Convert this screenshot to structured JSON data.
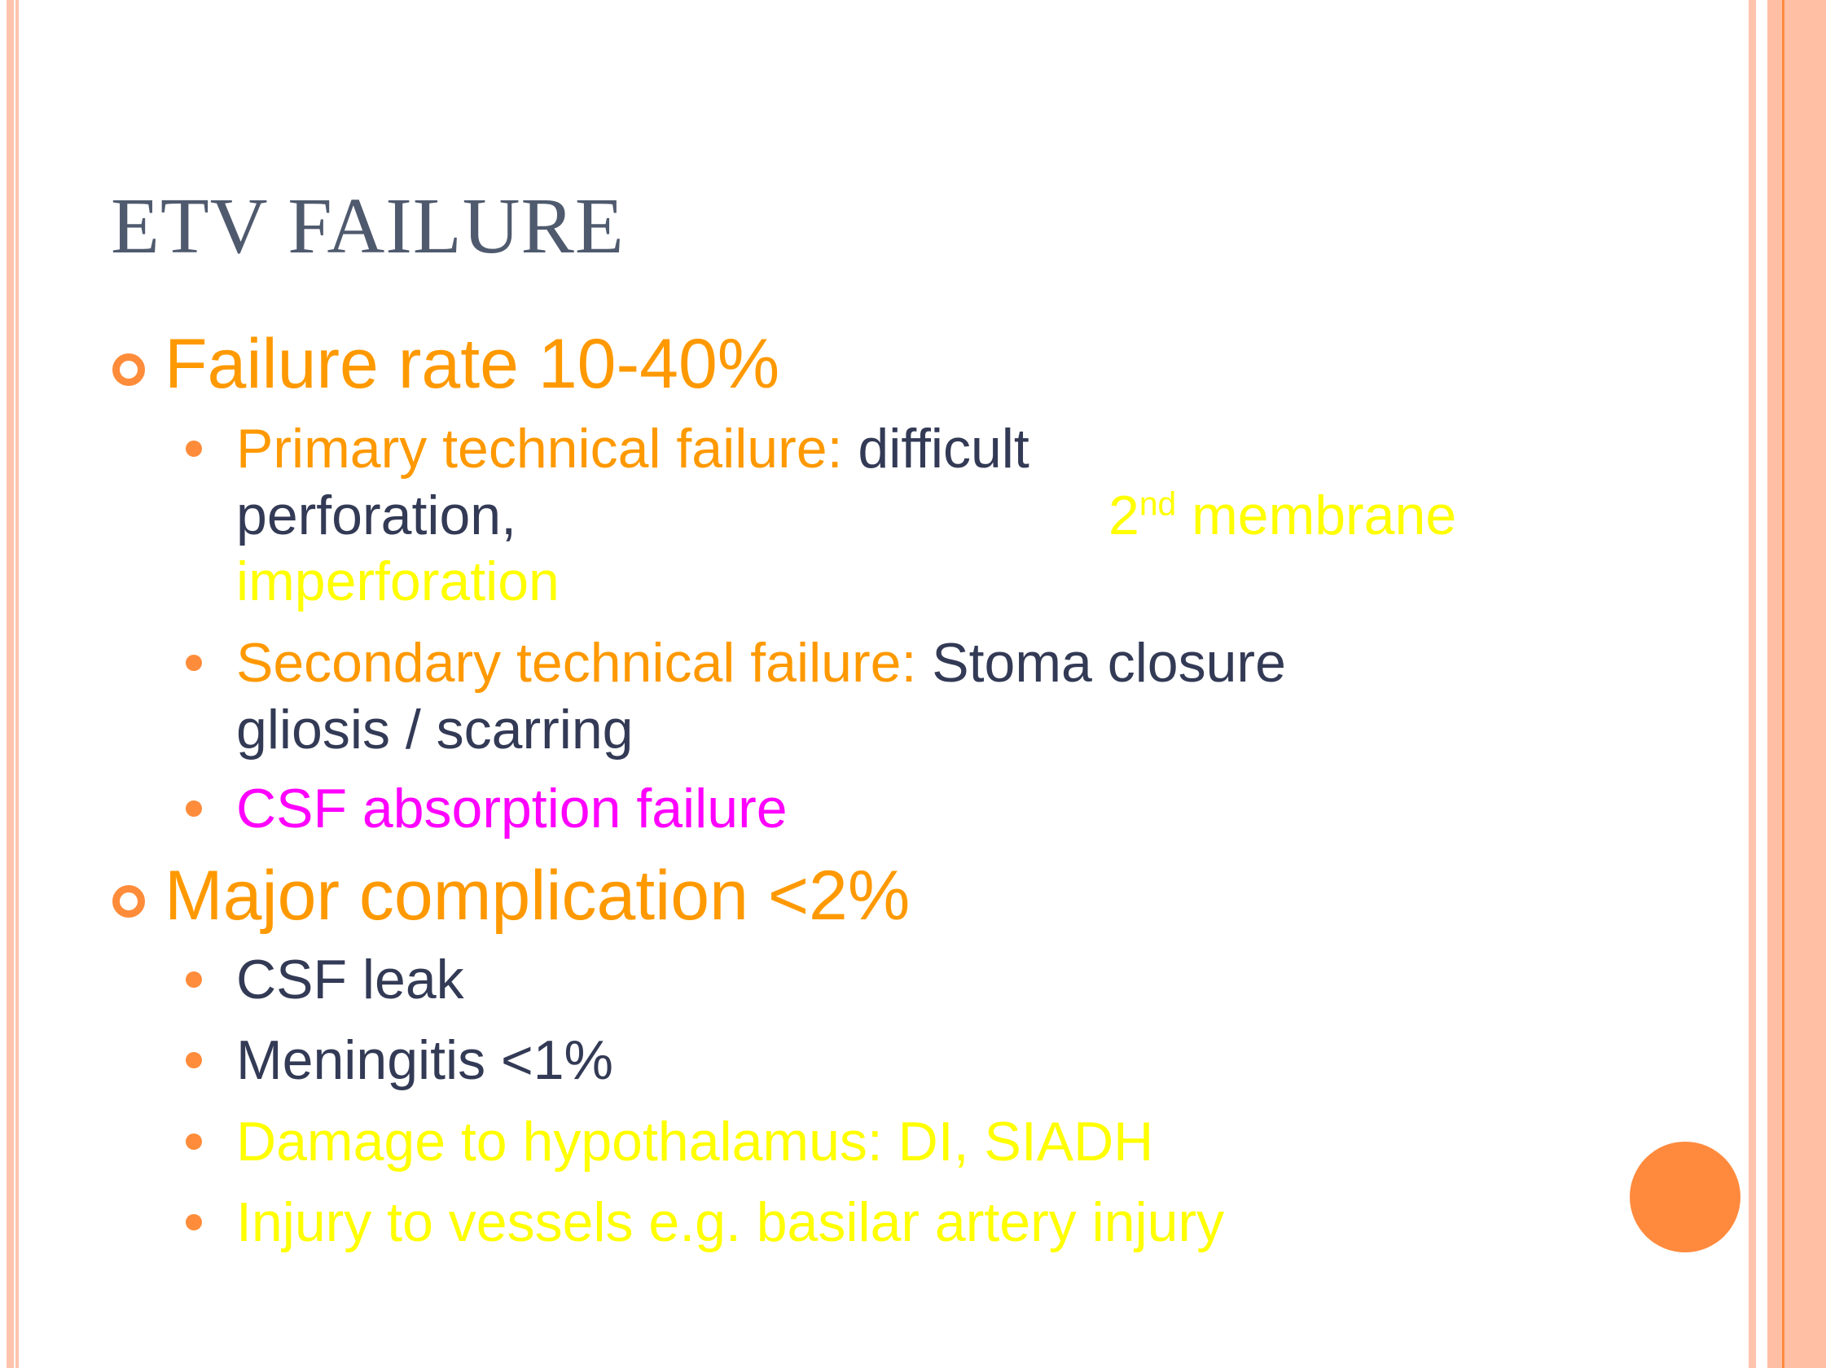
{
  "colors": {
    "orange": "#ff9900",
    "dark": "#333a55",
    "yellow": "#ffff00",
    "magenta": "#ff00ff",
    "bullet": "#ff8c3a",
    "title": "#4f5a6e"
  },
  "title": "ETV FAILURE",
  "sections": [
    {
      "heading": "Failure rate 10-40%",
      "items": [
        {
          "label": "Primary technical failure:",
          "text": "difficult",
          "cont1": "perforation,",
          "cont2_main": "2",
          "cont2_sup": "nd",
          "cont2_rest": " membrane",
          "cont3": "imperforation"
        },
        {
          "label": "Secondary technical failure:",
          "text": "Stoma closure",
          "cont1": "gliosis / scarring"
        },
        {
          "text": "CSF absorption failure"
        }
      ]
    },
    {
      "heading": "Major complication <2%",
      "items": [
        {
          "text": "CSF leak"
        },
        {
          "text": "Meningitis <1%"
        },
        {
          "text": "Damage to hypothalamus: DI, SIADH"
        },
        {
          "text": "Injury to vessels e.g. basilar artery injury"
        }
      ]
    }
  ]
}
